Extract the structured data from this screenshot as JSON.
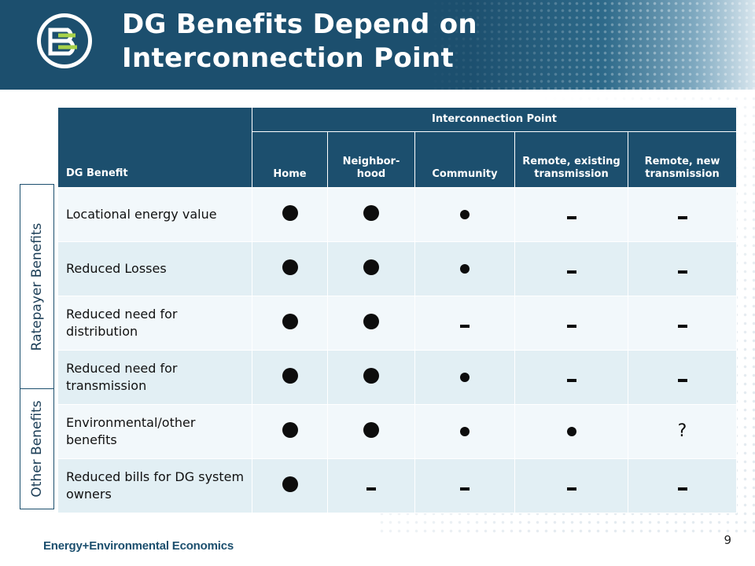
{
  "header": {
    "title_line1": "DG Benefits Depend on",
    "title_line2": "Interconnection Point",
    "accent_color": "#1c4f6e"
  },
  "table": {
    "benefit_header": "DG Benefit",
    "group_header": "Interconnection Point",
    "columns": [
      "Home",
      "Neighbor-\nhood",
      "Community",
      "Remote, existing transmission",
      "Remote, new transmission"
    ],
    "legend_symbols": {
      "large-dot": "large dot",
      "small-dot": "small dot",
      "dash": "-",
      "question": "?"
    },
    "rows": [
      {
        "label": "Locational energy value",
        "values": [
          "large-dot",
          "large-dot",
          "small-dot",
          "dash",
          "dash"
        ]
      },
      {
        "label": "Reduced Losses",
        "values": [
          "large-dot",
          "large-dot",
          "small-dot",
          "dash",
          "dash"
        ]
      },
      {
        "label": "Reduced need for distribution",
        "values": [
          "large-dot",
          "large-dot",
          "dash",
          "dash",
          "dash"
        ]
      },
      {
        "label": "Reduced need for transmission",
        "values": [
          "large-dot",
          "large-dot",
          "small-dot",
          "dash",
          "dash"
        ]
      },
      {
        "label": "Environmental/other benefits",
        "values": [
          "large-dot",
          "large-dot",
          "small-dot",
          "small-dot",
          "question"
        ]
      },
      {
        "label": "Reduced bills for DG system owners",
        "values": [
          "large-dot",
          "dash",
          "dash",
          "dash",
          "dash"
        ]
      }
    ]
  },
  "side_labels": {
    "ratepayer": "Ratepayer Benefits",
    "other": "Other Benefits"
  },
  "footer": {
    "company": "Energy+Environmental Economics",
    "page_number": "9"
  }
}
